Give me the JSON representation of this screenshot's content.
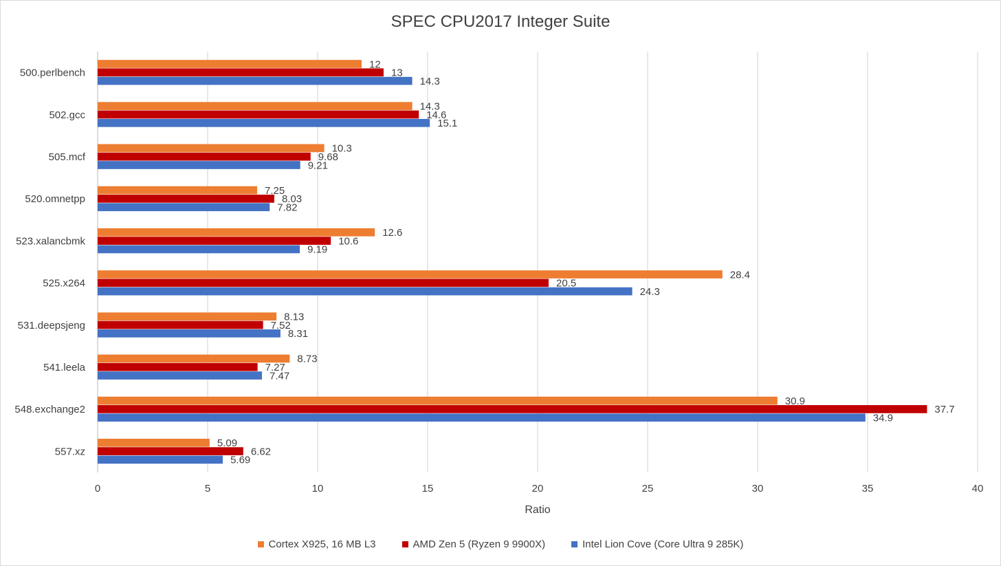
{
  "chart_data": {
    "type": "bar",
    "orientation": "horizontal",
    "title": "SPEC CPU2017 Integer Suite",
    "xlabel": "Ratio",
    "ylabel": "",
    "xlim": [
      0,
      40
    ],
    "x_ticks": [
      0,
      5,
      10,
      15,
      20,
      25,
      30,
      35,
      40
    ],
    "grid": true,
    "legend_position": "bottom",
    "categories": [
      "500.perlbench",
      "502.gcc",
      "505.mcf",
      "520.omnetpp",
      "523.xalancbmk",
      "525.x264",
      "531.deepsjeng",
      "541.leela",
      "548.exchange2",
      "557.xz"
    ],
    "series": [
      {
        "name": "Cortex X925, 16 MB L3",
        "color": "#ed7d31",
        "values": [
          12,
          14.3,
          10.3,
          7.25,
          12.6,
          28.4,
          8.13,
          8.73,
          30.9,
          5.09
        ]
      },
      {
        "name": "AMD Zen 5 (Ryzen 9 9900X)",
        "color": "#c00000",
        "values": [
          13,
          14.6,
          9.68,
          8.03,
          10.6,
          20.5,
          7.52,
          7.27,
          37.7,
          6.62
        ]
      },
      {
        "name": "Intel Lion Cove (Core Ultra 9 285K)",
        "color": "#4472c4",
        "values": [
          14.3,
          15.1,
          9.21,
          7.82,
          9.19,
          24.3,
          8.31,
          7.47,
          34.9,
          5.69
        ]
      }
    ]
  }
}
